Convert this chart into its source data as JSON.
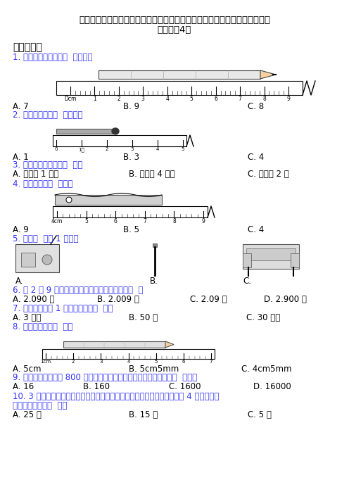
{
  "title_line1": "（必考题）小学数学二年级数学上册第一单元《长度单位》单元检测（有答案",
  "title_line2": "解析）（4）",
  "section1": "一、选择题",
  "q1": "1. 这支铅笔的长度是（  ）厘米。",
  "q1_opts": [
    "A. 7",
    "B. 9",
    "C. 8"
  ],
  "q2": "2. 下图中火柴长（  ）厘米。",
  "q2_opts": [
    "A. 1",
    "B. 3",
    "C. 4"
  ],
  "q3": "3. 下列说法正确的是（  ）。",
  "q3_opts": [
    "A. 小猫比 1 米高",
    "B. 房间高 4 厘米",
    "C. 跳绳长 2 米"
  ],
  "q4": "4. 图中小刀长（  ）厘米",
  "q4_opts": [
    "A. 9",
    "B. 5",
    "C. 4"
  ],
  "q5": "5. 下面（  ）比 1 米长。",
  "q5_opts": [
    "A.",
    "B.",
    "C."
  ],
  "q6": "6. 把 2 米 9 厘米改成用米作单位的三位小数是（  ）",
  "q6_opts": [
    "A. 2.090 米",
    "B. 2.009 米",
    "C. 2.09 米",
    "D. 2.900 米"
  ],
  "q7": "7. 二年级小朋友 1 小时大约能走（  ）。",
  "q7_opts": [
    "A. 3 千米",
    "B. 50 米",
    "C. 30 分米"
  ],
  "q8": "8. 下图铅笔长为（  ）。",
  "q8_opts": [
    "A. 5cm",
    "B. 5cm5mm",
    "C. 4cm5mm"
  ],
  "q9": "9. 小华家到学校大约 800 米，估计一下，他在上学的路上可能走了（  ）步。",
  "q9_opts": [
    "A. 16",
    "B. 160",
    "C. 1600",
    "D. 16000"
  ],
  "q10_line1": "10. 3 个二年级小朋友的身高加起来和教室的高度差不多，学校的教学楼是 4 层楼，教学",
  "q10_line2": "楼的高度大约是（  ）。",
  "q10_opts": [
    "A. 25 米",
    "B. 15 米",
    "C. 5 米"
  ],
  "bg_color": "#ffffff",
  "text_color": "#000000",
  "blue_color": "#3333ff",
  "body_fontsize": 8.5,
  "title_fontsize": 9.5,
  "section_fontsize": 10
}
